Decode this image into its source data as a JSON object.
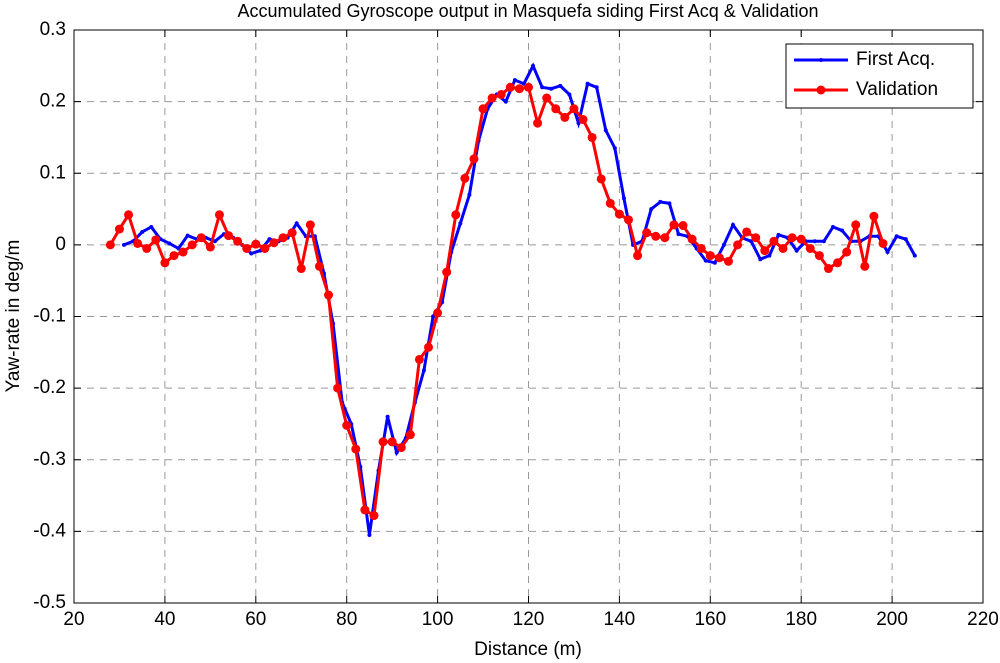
{
  "chart_data": {
    "type": "line",
    "title": "Accumulated Gyroscope output in Masquefa siding First Acq & Validation",
    "x_label": "Distance (m)",
    "y_label": "Yaw-rate in deg/m",
    "xlim": [
      20,
      220
    ],
    "xticks": [
      20,
      40,
      60,
      80,
      100,
      120,
      140,
      160,
      180,
      200,
      220
    ],
    "ylim": [
      -0.5,
      0.3
    ],
    "yticks": [
      0.3,
      0.2,
      0.1,
      0,
      -0.1,
      -0.2,
      -0.3,
      -0.4,
      -0.5
    ],
    "grid": true,
    "legend": "upper right",
    "series": [
      {
        "name": "First Acq.",
        "color": "#0000ff",
        "x": [
          31,
          33,
          35,
          37,
          39,
          41,
          43,
          45,
          47,
          49,
          51,
          53,
          55,
          57,
          59,
          61,
          63,
          65,
          67,
          69,
          71,
          73,
          75,
          77,
          79,
          81,
          83,
          85,
          87,
          89,
          91,
          93,
          95,
          97,
          99,
          101,
          103,
          105,
          107,
          109,
          111,
          113,
          115,
          117,
          119,
          121,
          123,
          125,
          127,
          129,
          131,
          133,
          135,
          137,
          139,
          141,
          143,
          145,
          147,
          149,
          151,
          153,
          155,
          157,
          159,
          161,
          163,
          165,
          167,
          169,
          171,
          173,
          175,
          177,
          179,
          181,
          183,
          185,
          187,
          189,
          191,
          193,
          195,
          197,
          199,
          201,
          203,
          205
        ],
        "values": [
          0,
          0.005,
          0.018,
          0.025,
          0.008,
          0.002,
          -0.005,
          0.013,
          0.008,
          0.01,
          0.005,
          0.015,
          0.01,
          0,
          -0.012,
          -0.008,
          0.008,
          0.005,
          0.01,
          0.03,
          0.012,
          0.012,
          -0.04,
          -0.11,
          -0.22,
          -0.25,
          -0.31,
          -0.405,
          -0.315,
          -0.24,
          -0.29,
          -0.27,
          -0.22,
          -0.175,
          -0.1,
          -0.08,
          -0.01,
          0.03,
          0.07,
          0.145,
          0.19,
          0.21,
          0.2,
          0.23,
          0.225,
          0.25,
          0.22,
          0.218,
          0.222,
          0.21,
          0.17,
          0.225,
          0.22,
          0.16,
          0.135,
          0.065,
          0,
          0.005,
          0.05,
          0.06,
          0.058,
          0.015,
          0.012,
          -0.005,
          -0.022,
          -0.025,
          0,
          0.028,
          0.01,
          0.005,
          -0.02,
          -0.015,
          0.014,
          0.01,
          -0.008,
          0.005,
          0.005,
          0.005,
          0.025,
          0.02,
          0.005,
          0.005,
          0.012,
          0.012,
          -0.01,
          0.012,
          0.008,
          -0.015
        ]
      },
      {
        "name": "Validation",
        "color": "#ff0000",
        "x": [
          28,
          30,
          32,
          34,
          36,
          38,
          40,
          42,
          44,
          46,
          48,
          50,
          52,
          54,
          56,
          58,
          60,
          62,
          64,
          66,
          68,
          70,
          72,
          74,
          76,
          78,
          80,
          82,
          84,
          86,
          88,
          90,
          92,
          94,
          96,
          98,
          100,
          102,
          104,
          106,
          108,
          110,
          112,
          114,
          116,
          118,
          120,
          122,
          124,
          126,
          128,
          130,
          132,
          134,
          136,
          138,
          140,
          142,
          144,
          146,
          148,
          150,
          152,
          154,
          156,
          158,
          160,
          162,
          164,
          166,
          168,
          170,
          172,
          174,
          176,
          178,
          180,
          182,
          184,
          186,
          188,
          190,
          192,
          194,
          196,
          198
        ],
        "values": [
          0,
          0.022,
          0.042,
          0.002,
          -0.005,
          0.007,
          -0.025,
          -0.015,
          -0.01,
          0,
          0.01,
          -0.003,
          0.042,
          0.013,
          0.005,
          -0.005,
          0.001,
          -0.005,
          0.003,
          0.01,
          0.017,
          -0.033,
          0.028,
          -0.03,
          -0.07,
          -0.2,
          -0.252,
          -0.285,
          -0.37,
          -0.378,
          -0.275,
          -0.275,
          -0.283,
          -0.265,
          -0.16,
          -0.143,
          -0.095,
          -0.038,
          0.042,
          0.093,
          0.12,
          0.19,
          0.205,
          0.21,
          0.22,
          0.218,
          0.22,
          0.17,
          0.205,
          0.19,
          0.178,
          0.19,
          0.175,
          0.15,
          0.092,
          0.058,
          0.043,
          0.035,
          -0.015,
          0.017,
          0.012,
          0.01,
          0.028,
          0.027,
          0.008,
          -0.005,
          -0.015,
          -0.018,
          -0.023,
          0,
          0.018,
          0.01,
          -0.008,
          0.005,
          -0.005,
          0.01,
          0.008,
          -0.005,
          -0.015,
          -0.033,
          -0.025,
          -0.01,
          0.028,
          -0.03,
          0.04,
          0.002
        ]
      }
    ]
  }
}
